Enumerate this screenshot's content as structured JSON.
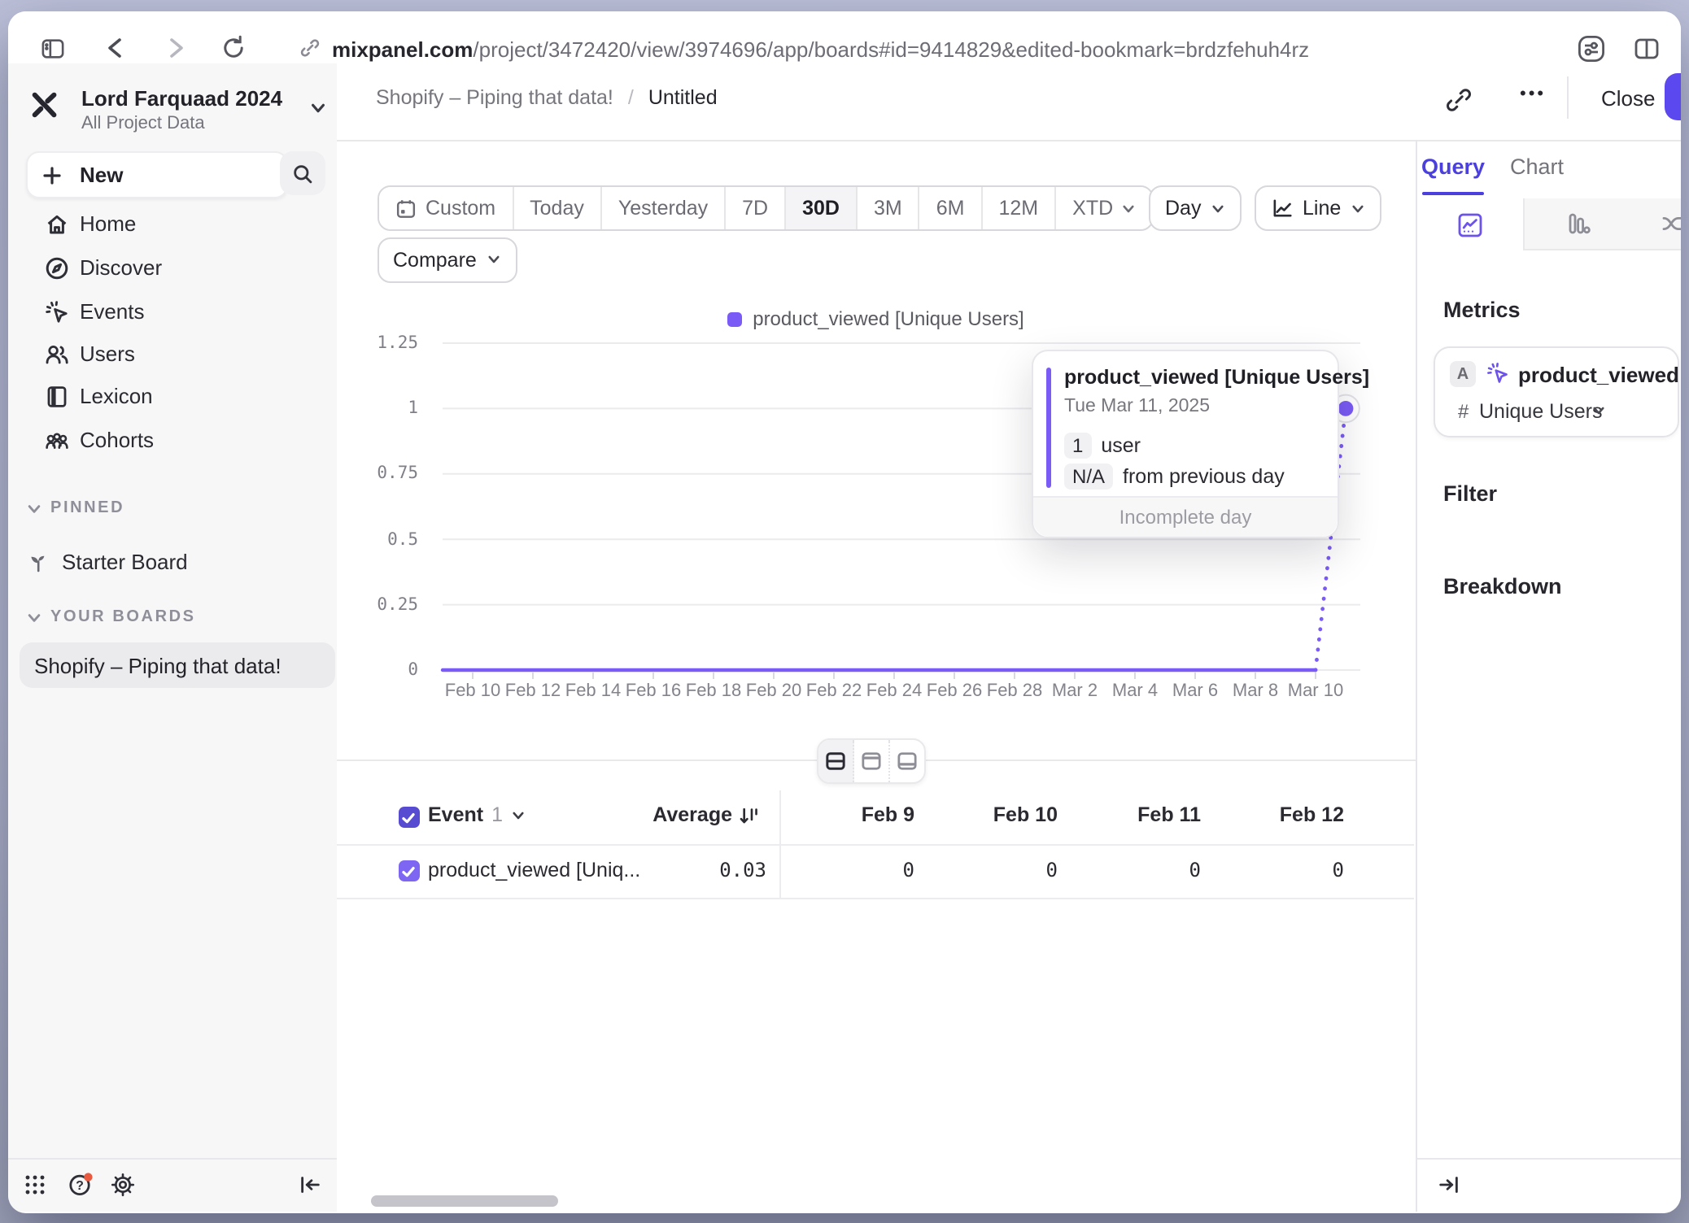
{
  "browser": {
    "url_host": "mixpanel.com",
    "url_path": "/project/3472420/view/3974696/app/boards#id=9414829&edited-bookmark=brdzfehuh4rz"
  },
  "sidebar": {
    "workspace": {
      "name": "Lord Farquaad 2024",
      "subtitle": "All Project Data"
    },
    "new_label": "New",
    "nav": [
      {
        "label": "Home"
      },
      {
        "label": "Discover"
      },
      {
        "label": "Events"
      },
      {
        "label": "Users"
      },
      {
        "label": "Lexicon"
      },
      {
        "label": "Cohorts"
      }
    ],
    "pinned_header": "PINNED",
    "pinned_items": [
      {
        "label": "Starter Board"
      }
    ],
    "your_boards_header": "YOUR BOARDS",
    "boards": [
      {
        "label": "Shopify – Piping that data!"
      }
    ]
  },
  "header": {
    "breadcrumb_parent": "Shopify – Piping that data!",
    "breadcrumb_sep": "/",
    "breadcrumb_current": "Untitled",
    "close_label": "Close",
    "ellipsis": "•••"
  },
  "toolbar": {
    "ranges": [
      "Custom",
      "Today",
      "Yesterday",
      "7D",
      "30D",
      "3M",
      "6M",
      "12M",
      "XTD"
    ],
    "selected_range": "30D",
    "granularity": "Day",
    "chart_type": "Line",
    "compare_label": "Compare"
  },
  "chart_data": {
    "type": "line",
    "legend_position": "top-center",
    "grid": true,
    "ylim": [
      0,
      1.25
    ],
    "y_ticks": [
      0,
      0.25,
      0.5,
      0.75,
      1,
      1.25
    ],
    "y_tick_labels": [
      "1.25",
      "1",
      "0.75",
      "0.5",
      "0.25",
      "0"
    ],
    "x_tick_labels": [
      "Feb 10",
      "Feb 12",
      "Feb 14",
      "Feb 16",
      "Feb 18",
      "Feb 20",
      "Feb 22",
      "Feb 24",
      "Feb 26",
      "Feb 28",
      "Mar 2",
      "Mar 4",
      "Mar 6",
      "Mar 8",
      "Mar 10"
    ],
    "series": [
      {
        "name": "product_viewed [Unique Users]",
        "color": "#7b5bf5",
        "x": [
          "Feb 9",
          "Feb 10",
          "Feb 11",
          "Feb 12",
          "Feb 13",
          "Feb 14",
          "Feb 15",
          "Feb 16",
          "Feb 17",
          "Feb 18",
          "Feb 19",
          "Feb 20",
          "Feb 21",
          "Feb 22",
          "Feb 23",
          "Feb 24",
          "Feb 25",
          "Feb 26",
          "Feb 27",
          "Feb 28",
          "Mar 1",
          "Mar 2",
          "Mar 3",
          "Mar 4",
          "Mar 5",
          "Mar 6",
          "Mar 7",
          "Mar 8",
          "Mar 9",
          "Mar 10",
          "Mar 11"
        ],
        "values": [
          0,
          0,
          0,
          0,
          0,
          0,
          0,
          0,
          0,
          0,
          0,
          0,
          0,
          0,
          0,
          0,
          0,
          0,
          0,
          0,
          0,
          0,
          0,
          0,
          0,
          0,
          0,
          0,
          0,
          0,
          1
        ],
        "incomplete_last_point": true
      }
    ]
  },
  "tooltip": {
    "title": "product_viewed [Unique Users]",
    "date": "Tue Mar 11, 2025",
    "value": "1",
    "value_unit": "user",
    "delta": "N/A",
    "delta_text": "from previous day",
    "footer": "Incomplete day"
  },
  "table": {
    "event_label": "Event",
    "event_count": "1",
    "average_label": "Average",
    "columns": [
      "Feb 9",
      "Feb 10",
      "Feb 11",
      "Feb 12"
    ],
    "rows": [
      {
        "name": "product_viewed [Uniq...",
        "average": "0.03",
        "values": [
          "0",
          "0",
          "0",
          "0"
        ]
      }
    ]
  },
  "panel": {
    "tab_query": "Query",
    "tab_chart": "Chart",
    "metrics_label": "Metrics",
    "metric": {
      "letter": "A",
      "event": "product_viewed",
      "operator": "#",
      "aggregation": "Unique Users"
    },
    "filter_label": "Filter",
    "breakdown_label": "Breakdown"
  }
}
